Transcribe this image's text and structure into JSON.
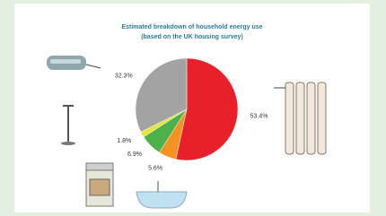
{
  "chart_data": {
    "type": "pie",
    "title": "Estimated breakdown of household energy use",
    "subtitle": "(based on the UK housing survey)",
    "values": [
      53.4,
      5.6,
      6.9,
      1.8,
      32.3
    ],
    "value_labels": [
      "53.4%",
      "5.6%",
      "6.9%",
      "1.8%",
      "32.3%"
    ],
    "colors": [
      "#e8202a",
      "#f39322",
      "#4db04a",
      "#e8e23a",
      "#a3a3a3"
    ]
  }
}
